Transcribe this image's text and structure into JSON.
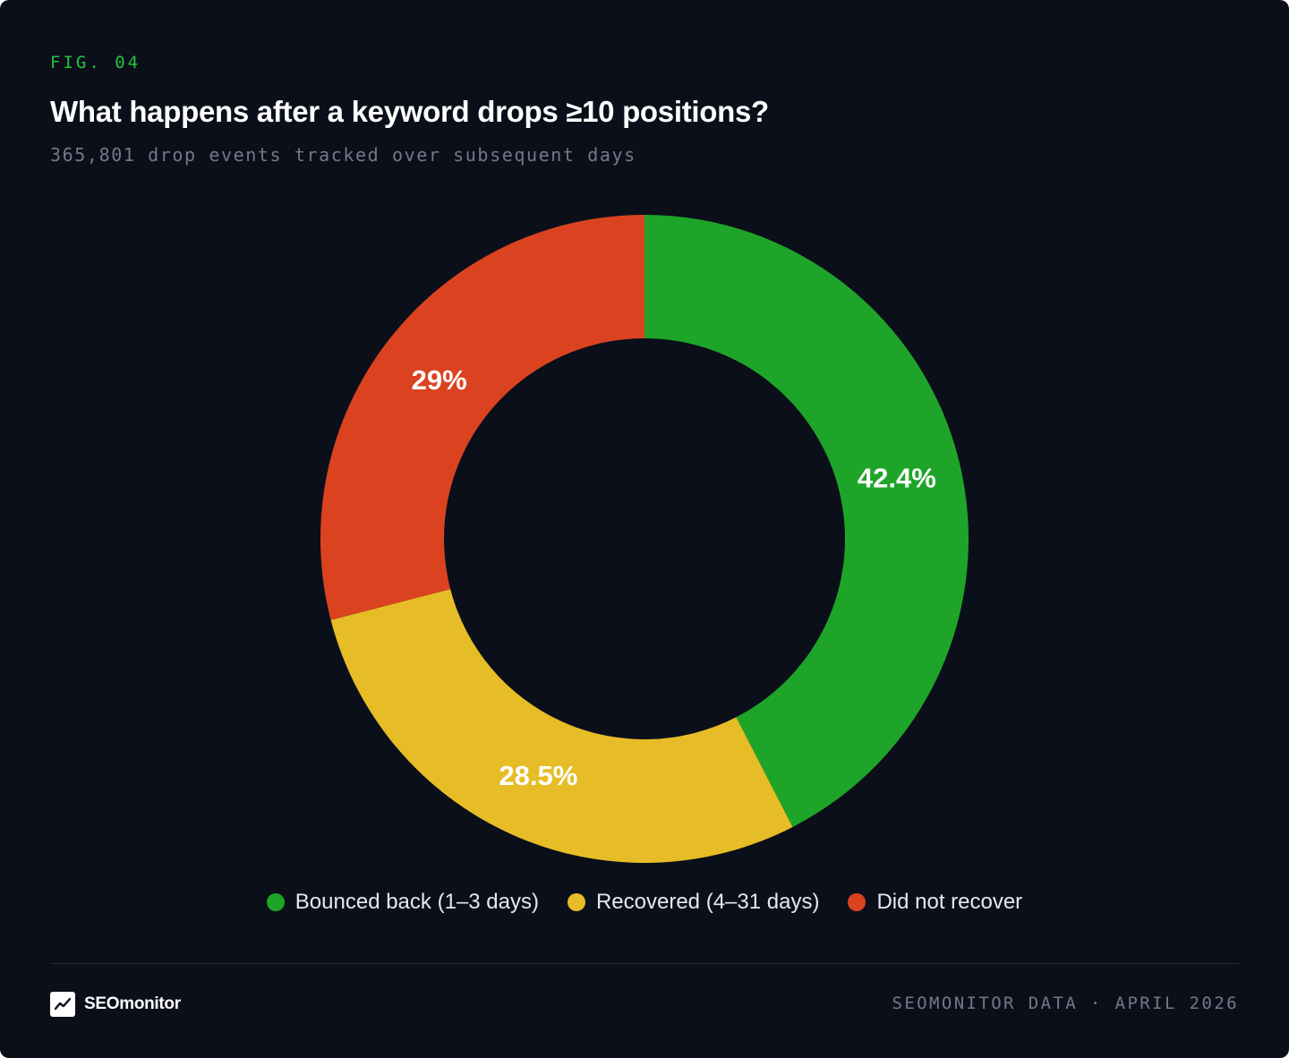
{
  "header": {
    "fig_label": "FIG. 04",
    "title": "What happens after a keyword drops ≥10 positions?",
    "subtitle": "365,801 drop events tracked over subsequent days"
  },
  "chart_data": {
    "type": "pie",
    "variant": "donut",
    "categories": [
      "Bounced back (1–3 days)",
      "Recovered (4–31 days)",
      "Did not recover"
    ],
    "values": [
      42.4,
      28.5,
      29
    ],
    "data_labels": [
      "42.4%",
      "28.5%",
      "29%"
    ],
    "colors": [
      "#1ea529",
      "#e6bd26",
      "#db4320"
    ],
    "legend_position": "bottom-center"
  },
  "footer": {
    "brand_name": "SEOmonitor",
    "logo_icon": "trend-line-icon",
    "source": "SEOMONITOR DATA · APRIL 2026"
  }
}
